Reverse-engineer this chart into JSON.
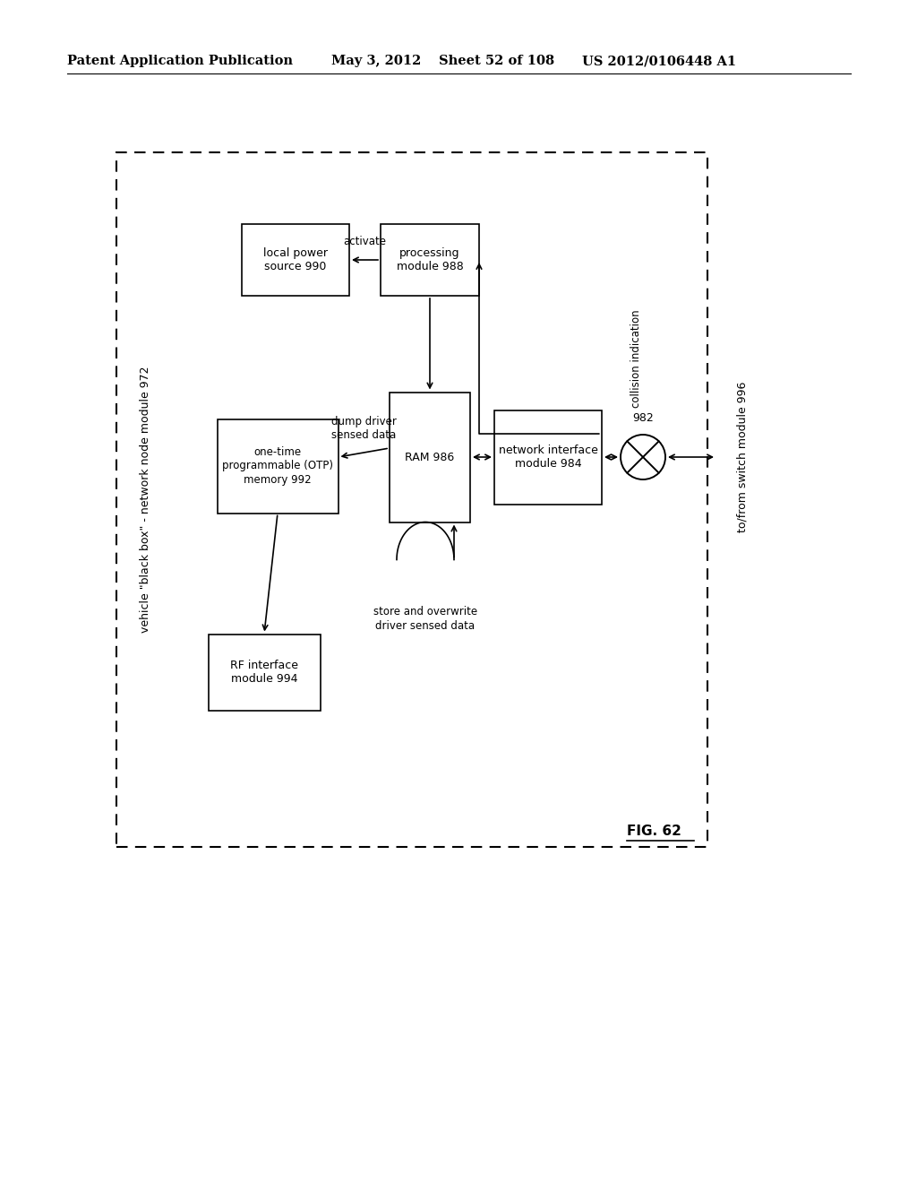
{
  "bg_color": "#ffffff",
  "header_left": "Patent Application Publication",
  "header_mid_date": "May 3, 2012",
  "header_mid_sheet": "Sheet 52 of 108",
  "header_right": "US 2012/0106448 A1",
  "fig_label": "FIG. 62",
  "outer_box_label": "vehicle \"black box\" - network node module 972"
}
